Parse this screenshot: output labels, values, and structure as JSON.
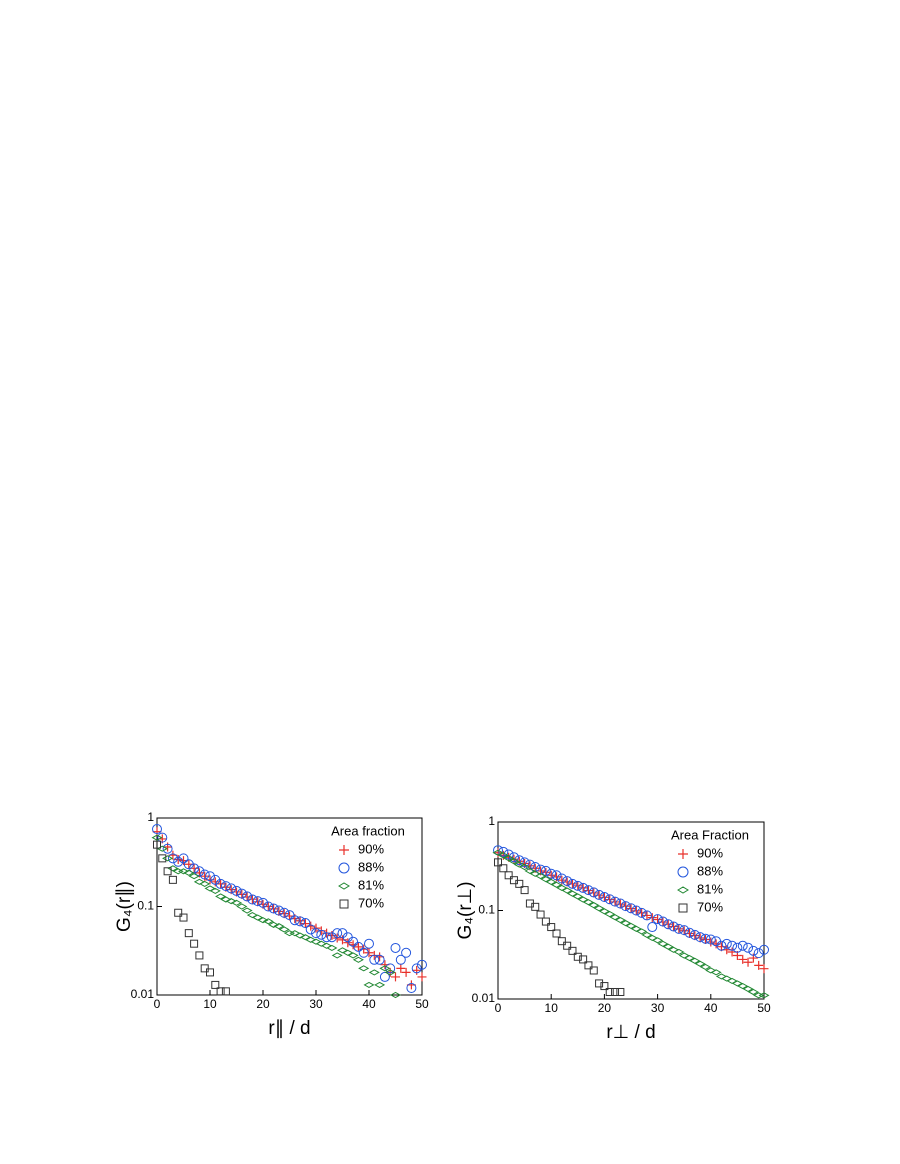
{
  "chart_data": [
    {
      "type": "scatter",
      "xlabel": "r∥ / d",
      "ylabel": "G₄(r∥)",
      "legend_title": "Area fraction",
      "legend": "upper right",
      "xlim": [
        0,
        50
      ],
      "xticks": [
        0,
        10,
        20,
        30,
        40,
        50
      ],
      "ylim": [
        0.01,
        1
      ],
      "yticks": [
        0.01,
        0.1,
        1
      ],
      "ylog": true,
      "x": [
        0,
        1,
        2,
        3,
        4,
        5,
        6,
        7,
        8,
        9,
        10,
        11,
        12,
        13,
        14,
        15,
        16,
        17,
        18,
        19,
        20,
        21,
        22,
        23,
        24,
        25,
        26,
        27,
        28,
        29,
        30,
        31,
        32,
        33,
        34,
        35,
        36,
        37,
        38,
        39,
        40,
        41,
        42,
        43,
        44,
        45,
        46,
        47,
        48,
        49,
        50
      ],
      "series": [
        {
          "name": "90%",
          "color": "#e8302a",
          "marker": "plus",
          "values": [
            0.7,
            0.58,
            0.47,
            0.38,
            0.34,
            0.33,
            0.3,
            0.27,
            0.24,
            0.22,
            0.2,
            0.19,
            0.18,
            0.165,
            0.155,
            0.146,
            0.137,
            0.128,
            0.121,
            0.113,
            0.106,
            0.1,
            0.094,
            0.088,
            0.083,
            0.078,
            0.073,
            0.069,
            0.064,
            0.06,
            0.057,
            0.053,
            0.05,
            0.047,
            0.044,
            0.042,
            0.039,
            0.037,
            0.035,
            0.033,
            0.03,
            0.028,
            0.027,
            0.022,
            0.018,
            0.016,
            0.02,
            0.018,
            0.013,
            0.019,
            0.016
          ]
        },
        {
          "name": "88%",
          "color": "#2255dd",
          "marker": "circle",
          "values": [
            0.75,
            0.6,
            0.45,
            0.35,
            0.32,
            0.35,
            0.3,
            0.27,
            0.25,
            0.23,
            0.22,
            0.2,
            0.18,
            0.17,
            0.16,
            0.15,
            0.14,
            0.13,
            0.12,
            0.115,
            0.11,
            0.1,
            0.095,
            0.09,
            0.085,
            0.08,
            0.07,
            0.068,
            0.065,
            0.055,
            0.05,
            0.048,
            0.045,
            0.045,
            0.05,
            0.05,
            0.045,
            0.04,
            0.035,
            0.03,
            0.038,
            0.025,
            0.025,
            0.016,
            0.02,
            0.034,
            0.025,
            0.03,
            0.012,
            0.02,
            0.022
          ]
        },
        {
          "name": "81%",
          "color": "#228833",
          "marker": "diamond",
          "values": [
            0.6,
            0.45,
            0.35,
            0.27,
            0.25,
            0.25,
            0.24,
            0.22,
            0.19,
            0.18,
            0.16,
            0.15,
            0.13,
            0.12,
            0.115,
            0.11,
            0.1,
            0.09,
            0.08,
            0.075,
            0.07,
            0.068,
            0.062,
            0.06,
            0.055,
            0.05,
            0.05,
            0.047,
            0.045,
            0.042,
            0.04,
            0.038,
            0.036,
            0.034,
            0.028,
            0.032,
            0.03,
            0.028,
            0.025,
            0.02,
            0.013,
            0.018,
            0.013,
            0.02,
            0.018,
            0.01,
            null,
            null,
            null,
            null,
            null
          ]
        },
        {
          "name": "70%",
          "color": "#333333",
          "marker": "square",
          "values": [
            0.5,
            0.35,
            0.25,
            0.2,
            0.085,
            0.075,
            0.05,
            0.038,
            0.028,
            0.02,
            0.018,
            0.013,
            0.011,
            0.011,
            null,
            null,
            null,
            null,
            null,
            null,
            null,
            null,
            null,
            null,
            null,
            null,
            null,
            null,
            null,
            null,
            null,
            null,
            null,
            null,
            null,
            null,
            null,
            null,
            null,
            null,
            null,
            null,
            null,
            null,
            null,
            null,
            null,
            null,
            null,
            null,
            null
          ]
        }
      ]
    },
    {
      "type": "scatter",
      "xlabel": "r⊥ / d",
      "ylabel": "G₄(r⊥)",
      "legend_title": "Area Fraction",
      "legend": "upper right",
      "xlim": [
        0,
        50
      ],
      "xticks": [
        0,
        10,
        20,
        30,
        40,
        50
      ],
      "ylim": [
        0.01,
        1
      ],
      "yticks": [
        0.01,
        0.1,
        1
      ],
      "ylog": true,
      "x": [
        0,
        1,
        2,
        3,
        4,
        5,
        6,
        7,
        8,
        9,
        10,
        11,
        12,
        13,
        14,
        15,
        16,
        17,
        18,
        19,
        20,
        21,
        22,
        23,
        24,
        25,
        26,
        27,
        28,
        29,
        30,
        31,
        32,
        33,
        34,
        35,
        36,
        37,
        38,
        39,
        40,
        41,
        42,
        43,
        44,
        45,
        46,
        47,
        48,
        49,
        50
      ],
      "series": [
        {
          "name": "90%",
          "color": "#e8302a",
          "marker": "plus",
          "values": [
            0.45,
            0.42,
            0.4,
            0.38,
            0.36,
            0.34,
            0.32,
            0.3,
            0.28,
            0.27,
            0.25,
            0.24,
            0.22,
            0.21,
            0.2,
            0.19,
            0.18,
            0.168,
            0.158,
            0.149,
            0.141,
            0.133,
            0.125,
            0.118,
            0.112,
            0.105,
            0.099,
            0.094,
            0.088,
            0.083,
            0.079,
            0.074,
            0.07,
            0.066,
            0.062,
            0.059,
            0.055,
            0.052,
            0.049,
            0.047,
            0.044,
            0.042,
            0.039,
            0.036,
            0.034,
            0.031,
            0.028,
            0.026,
            0.029,
            0.024,
            0.022
          ]
        },
        {
          "name": "88%",
          "color": "#2255dd",
          "marker": "circle",
          "values": [
            0.48,
            0.46,
            0.43,
            0.4,
            0.37,
            0.35,
            0.33,
            0.31,
            0.29,
            0.28,
            0.26,
            0.25,
            0.23,
            0.215,
            0.2,
            0.19,
            0.18,
            0.17,
            0.16,
            0.15,
            0.142,
            0.134,
            0.126,
            0.12,
            0.112,
            0.106,
            0.1,
            0.094,
            0.088,
            0.065,
            0.08,
            0.075,
            0.07,
            0.066,
            0.062,
            0.06,
            0.056,
            0.053,
            0.05,
            0.048,
            0.047,
            0.045,
            0.04,
            0.042,
            0.04,
            0.038,
            0.04,
            0.038,
            0.035,
            0.033,
            0.036
          ]
        },
        {
          "name": "81%",
          "color": "#228833",
          "marker": "diamond",
          "values": [
            0.45,
            0.42,
            0.39,
            0.36,
            0.33,
            0.31,
            0.28,
            0.26,
            0.245,
            0.226,
            0.21,
            0.195,
            0.18,
            0.168,
            0.155,
            0.144,
            0.133,
            0.124,
            0.115,
            0.106,
            0.098,
            0.091,
            0.084,
            0.078,
            0.072,
            0.067,
            0.062,
            0.058,
            0.053,
            0.049,
            0.046,
            0.042,
            0.039,
            0.036,
            0.034,
            0.031,
            0.029,
            0.027,
            0.025,
            0.023,
            0.021,
            0.02,
            0.018,
            0.017,
            0.016,
            0.015,
            0.014,
            0.013,
            0.012,
            0.011,
            0.011
          ]
        },
        {
          "name": "70%",
          "color": "#333333",
          "marker": "square",
          "values": [
            0.35,
            0.3,
            0.25,
            0.22,
            0.2,
            0.17,
            0.12,
            0.11,
            0.09,
            0.075,
            0.065,
            0.055,
            0.045,
            0.04,
            0.035,
            0.03,
            0.028,
            0.024,
            0.021,
            0.015,
            0.014,
            0.012,
            0.012,
            0.012,
            null,
            null,
            null,
            null,
            null,
            null,
            null,
            null,
            null,
            null,
            null,
            null,
            null,
            null,
            null,
            null,
            null,
            null,
            null,
            null,
            null,
            null,
            null,
            null,
            null,
            null,
            null
          ]
        }
      ]
    }
  ]
}
